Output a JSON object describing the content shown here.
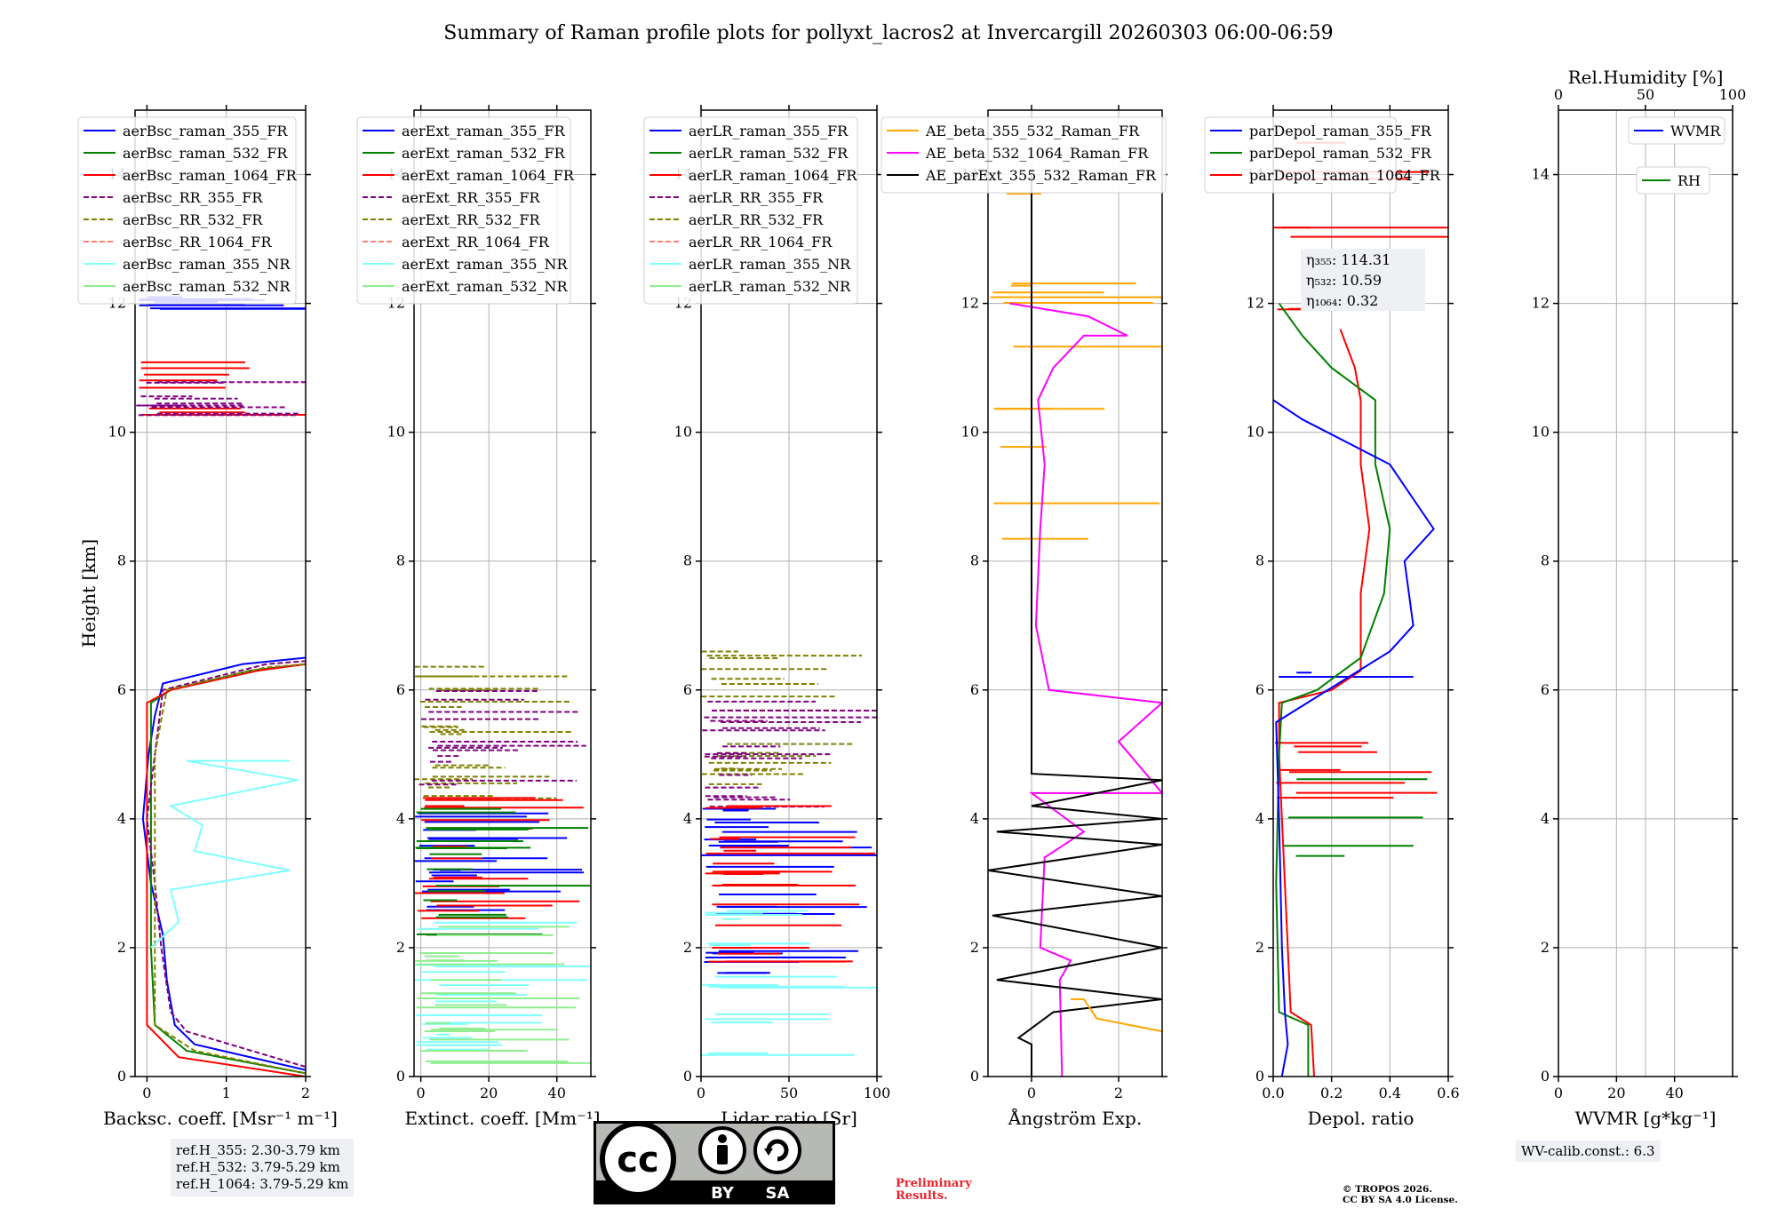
{
  "title": "Summary of Raman profile plots for pollyxt_lacros2 at Invercargill 20260303 06:00-06:59",
  "colors": {
    "blue": "#0000ff",
    "green": "#008000",
    "red": "#ff0000",
    "purple": "#800080",
    "olive": "#808000",
    "salmon": "#fa8072",
    "cyan": "#80ffff",
    "lightgreen": "#90ee90",
    "orange": "#ffa500",
    "magenta": "#ff00ff",
    "black": "#000000"
  },
  "chart_data": [
    {
      "type": "line",
      "panel": "backscatter",
      "xlabel": "Backsc. coeff. [Msr⁻¹ m⁻¹]",
      "ylabel": "Height [km]",
      "xlim": [
        -0.15,
        2.0
      ],
      "ylim": [
        0,
        15
      ],
      "xticks": [
        0,
        1,
        2
      ],
      "xtick_labels": [
        "0",
        "1",
        "2"
      ],
      "yticks": [
        0,
        2,
        4,
        6,
        8,
        10,
        12,
        14
      ],
      "ytick_labels": [
        "0",
        "2",
        "4",
        "6",
        "8",
        "10",
        "12",
        "14"
      ],
      "legend": [
        "aerBsc_raman_355_FR",
        "aerBsc_raman_532_FR",
        "aerBsc_raman_1064_FR",
        "aerBsc_RR_355_FR",
        "aerBsc_RR_532_FR",
        "aerBsc_RR_1064_FR",
        "aerBsc_raman_355_NR",
        "aerBsc_raman_532_NR"
      ],
      "series": [
        {
          "name": "aerBsc_raman_355_FR",
          "color": "blue",
          "style": "solid",
          "points": [
            [
              2.0,
              0.1
            ],
            [
              0.6,
              0.5
            ],
            [
              0.35,
              0.8
            ],
            [
              0.25,
              1.5
            ],
            [
              0.2,
              2.2
            ],
            [
              0.05,
              3.0
            ],
            [
              -0.05,
              4.0
            ],
            [
              0.02,
              5.0
            ],
            [
              0.1,
              5.6
            ],
            [
              0.2,
              6.1
            ],
            [
              1.2,
              6.4
            ],
            [
              2.0,
              6.5
            ]
          ]
        },
        {
          "name": "aerBsc_raman_532_FR",
          "color": "green",
          "style": "solid",
          "points": [
            [
              2.0,
              0.05
            ],
            [
              0.5,
              0.4
            ],
            [
              0.1,
              0.8
            ],
            [
              0.05,
              2.0
            ],
            [
              0.05,
              4.0
            ],
            [
              0.05,
              5.8
            ],
            [
              0.3,
              6.0
            ],
            [
              1.3,
              6.3
            ],
            [
              2.0,
              6.4
            ]
          ]
        },
        {
          "name": "aerBsc_raman_1064_FR",
          "color": "red",
          "style": "solid",
          "points": [
            [
              2.0,
              0.0
            ],
            [
              0.4,
              0.3
            ],
            [
              0.0,
              0.8
            ],
            [
              0.0,
              4.0
            ],
            [
              0.0,
              5.8
            ],
            [
              0.3,
              6.0
            ],
            [
              1.4,
              6.3
            ],
            [
              2.0,
              6.4
            ]
          ]
        },
        {
          "name": "aerBsc_RR_355_FR",
          "color": "purple",
          "style": "dashed",
          "points": [
            [
              2.0,
              0.15
            ],
            [
              0.5,
              0.7
            ],
            [
              0.3,
              1.0
            ],
            [
              0.18,
              2.0
            ],
            [
              0.1,
              3.0
            ],
            [
              0.0,
              4.0
            ],
            [
              0.1,
              5.0
            ],
            [
              0.2,
              6.0
            ],
            [
              1.5,
              6.4
            ],
            [
              2.0,
              6.45
            ]
          ]
        },
        {
          "name": "aerBsc_RR_532_FR",
          "color": "olive",
          "style": "dashed",
          "points": [
            [
              2.0,
              0.05
            ],
            [
              0.6,
              0.4
            ],
            [
              0.1,
              0.8
            ],
            [
              0.1,
              3.0
            ],
            [
              0.1,
              5.0
            ],
            [
              0.25,
              6.0
            ],
            [
              1.5,
              6.35
            ],
            [
              2.0,
              6.4
            ]
          ]
        },
        {
          "name": "aerBsc_raman_355_NR",
          "color": "cyan",
          "style": "solid",
          "points": [
            [
              0.05,
              2.0
            ],
            [
              0.4,
              2.4
            ],
            [
              0.3,
              2.9
            ],
            [
              1.8,
              3.2
            ],
            [
              0.6,
              3.5
            ],
            [
              0.7,
              3.9
            ],
            [
              0.3,
              4.2
            ],
            [
              1.9,
              4.6
            ],
            [
              0.5,
              4.9
            ],
            [
              1.8,
              4.9
            ]
          ]
        }
      ]
    },
    {
      "type": "line",
      "panel": "extinction",
      "xlabel": "Extinct. coeff. [Mm⁻¹]",
      "xlim": [
        -2,
        50
      ],
      "ylim": [
        0,
        15
      ],
      "xticks": [
        0,
        20,
        40
      ],
      "xtick_labels": [
        "0",
        "20",
        "40"
      ],
      "legend": [
        "aerExt_raman_355_FR",
        "aerExt_raman_532_FR",
        "aerExt_raman_1064_FR",
        "aerExt_RR_355_FR",
        "aerExt_RR_532_FR",
        "aerExt_RR_1064_FR",
        "aerExt_raman_355_NR",
        "aerExt_raman_532_NR"
      ]
    },
    {
      "type": "line",
      "panel": "lidar_ratio",
      "xlabel": "Lidar ratio [Sr]",
      "xlim": [
        0,
        100
      ],
      "ylim": [
        0,
        15
      ],
      "xticks": [
        0,
        50,
        100
      ],
      "xtick_labels": [
        "0",
        "50",
        "100"
      ],
      "legend": [
        "aerLR_raman_355_FR",
        "aerLR_raman_532_FR",
        "aerLR_raman_1064_FR",
        "aerLR_RR_355_FR",
        "aerLR_RR_532_FR",
        "aerLR_RR_1064_FR",
        "aerLR_raman_355_NR",
        "aerLR_raman_532_NR"
      ]
    },
    {
      "type": "line",
      "panel": "angstrom",
      "xlabel": "Ångström Exp.",
      "xlim": [
        -1,
        3
      ],
      "ylim": [
        0,
        15
      ],
      "xticks": [
        0,
        2
      ],
      "xtick_labels": [
        "0",
        "2"
      ],
      "legend": [
        "AE_beta_355_532_Raman_FR",
        "AE_beta_532_1064_Raman_FR",
        "AE_parExt_355_532_Raman_FR"
      ],
      "series": [
        {
          "name": "AE_beta_532_1064_Raman_FR",
          "color": "magenta",
          "style": "solid",
          "points": [
            [
              0.7,
              0.0
            ],
            [
              0.65,
              1.5
            ],
            [
              0.9,
              1.8
            ],
            [
              0.2,
              2.0
            ],
            [
              0.3,
              3.4
            ],
            [
              1.2,
              3.8
            ],
            [
              0.0,
              4.4
            ],
            [
              3.0,
              4.4
            ],
            [
              2.0,
              5.2
            ],
            [
              3.0,
              5.8
            ],
            [
              0.4,
              6.0
            ],
            [
              0.1,
              7.0
            ],
            [
              0.2,
              8.5
            ],
            [
              0.3,
              9.5
            ],
            [
              0.15,
              10.5
            ],
            [
              0.5,
              11.0
            ],
            [
              1.2,
              11.5
            ],
            [
              2.2,
              11.5
            ],
            [
              1.3,
              11.8
            ],
            [
              -0.5,
              12.0
            ]
          ]
        },
        {
          "name": "AE_parExt_355_532_Raman_FR",
          "color": "black",
          "style": "solid",
          "points": [
            [
              0.0,
              0.0
            ],
            [
              0.0,
              0.5
            ],
            [
              -0.3,
              0.6
            ],
            [
              0.5,
              1.0
            ],
            [
              3.0,
              1.2
            ],
            [
              -0.8,
              1.5
            ],
            [
              3.0,
              2.0
            ],
            [
              -0.9,
              2.5
            ],
            [
              3.0,
              2.8
            ],
            [
              -1.0,
              3.2
            ],
            [
              3.0,
              3.6
            ],
            [
              -0.8,
              3.8
            ],
            [
              3.0,
              4.0
            ],
            [
              0.0,
              4.2
            ],
            [
              3.0,
              4.6
            ],
            [
              0.0,
              4.7
            ],
            [
              0.0,
              14.0
            ]
          ]
        },
        {
          "name": "AE_beta_355_532_Raman_FR",
          "color": "orange",
          "style": "solid",
          "points": [
            [
              3.0,
              0.7
            ],
            [
              1.5,
              0.9
            ],
            [
              1.2,
              1.2
            ],
            [
              0.9,
              1.2
            ]
          ]
        }
      ]
    },
    {
      "type": "line",
      "panel": "depolarization",
      "xlabel": "Depol. ratio",
      "xlim": [
        0,
        0.6
      ],
      "ylim": [
        0,
        15
      ],
      "xticks": [
        0,
        0.2,
        0.4,
        0.6
      ],
      "xtick_labels": [
        "0.0",
        "0.2",
        "0.4",
        "0.6"
      ],
      "legend": [
        "parDepol_raman_355_FR",
        "parDepol_raman_532_FR",
        "parDepol_raman_1064_FR"
      ],
      "annotations": [
        "η₃₅₅: 114.31",
        "η₅₃₂: 10.59",
        "η₁₀₆₄: 0.32"
      ],
      "series": [
        {
          "name": "parDepol_raman_1064_FR",
          "color": "red",
          "style": "solid",
          "points": [
            [
              0.14,
              0.0
            ],
            [
              0.13,
              0.8
            ],
            [
              0.06,
              1.0
            ],
            [
              0.05,
              2.0
            ],
            [
              0.04,
              3.0
            ],
            [
              0.03,
              4.0
            ],
            [
              0.02,
              5.0
            ],
            [
              0.02,
              5.8
            ],
            [
              0.2,
              6.0
            ],
            [
              0.3,
              6.3
            ],
            [
              0.3,
              7.5
            ],
            [
              0.33,
              8.5
            ],
            [
              0.3,
              9.5
            ],
            [
              0.3,
              10.5
            ],
            [
              0.28,
              11.0
            ],
            [
              0.23,
              11.6
            ]
          ]
        },
        {
          "name": "parDepol_raman_532_FR",
          "color": "green",
          "style": "solid",
          "points": [
            [
              0.12,
              0.0
            ],
            [
              0.12,
              0.8
            ],
            [
              0.02,
              1.0
            ],
            [
              0.01,
              3.0
            ],
            [
              0.02,
              5.0
            ],
            [
              0.03,
              5.8
            ],
            [
              0.15,
              6.0
            ],
            [
              0.3,
              6.5
            ],
            [
              0.38,
              7.5
            ],
            [
              0.4,
              8.5
            ],
            [
              0.35,
              9.5
            ],
            [
              0.35,
              10.5
            ],
            [
              0.2,
              11.0
            ],
            [
              0.1,
              11.5
            ],
            [
              0.02,
              12.0
            ]
          ]
        },
        {
          "name": "parDepol_raman_355_FR",
          "color": "blue",
          "style": "solid",
          "points": [
            [
              0.03,
              0.0
            ],
            [
              0.05,
              0.5
            ],
            [
              0.04,
              1.0
            ],
            [
              0.03,
              2.0
            ],
            [
              0.02,
              4.0
            ],
            [
              0.01,
              5.5
            ],
            [
              0.4,
              6.6
            ],
            [
              0.48,
              7.0
            ],
            [
              0.45,
              8.0
            ],
            [
              0.55,
              8.5
            ],
            [
              0.4,
              9.5
            ],
            [
              0.1,
              10.2
            ],
            [
              0.0,
              10.5
            ]
          ]
        }
      ]
    },
    {
      "type": "line",
      "panel": "wvmr_rh",
      "xlabel": "WVMR [g*kg⁻¹]",
      "xlabel_top": "Rel.Humidity [%]",
      "xlim": [
        0,
        60
      ],
      "ylim": [
        0,
        15
      ],
      "xticks": [
        0,
        20,
        40
      ],
      "xtick_labels": [
        "0",
        "20",
        "40"
      ],
      "xticks_top": [
        0,
        50,
        100
      ],
      "xtick_labels_top": [
        "0",
        "50",
        "100"
      ],
      "legend": [
        "WVMR",
        "RH"
      ]
    }
  ],
  "info": {
    "ref_h_355": "ref.H_355: 2.30-3.79 km",
    "ref_h_532": "ref.H_532: 3.79-5.29 km",
    "ref_h_1064": "ref.H_1064: 3.79-5.29 km",
    "wv_calib": "WV-calib.const.: 6.3",
    "preliminary_1": "Preliminary",
    "preliminary_2": "Results.",
    "copyright_1": "© TROPOS 2026.",
    "copyright_2": "CC BY SA 4.0 License.",
    "cc_logo": "cc",
    "cc_by": "BY",
    "cc_sa": "SA"
  }
}
